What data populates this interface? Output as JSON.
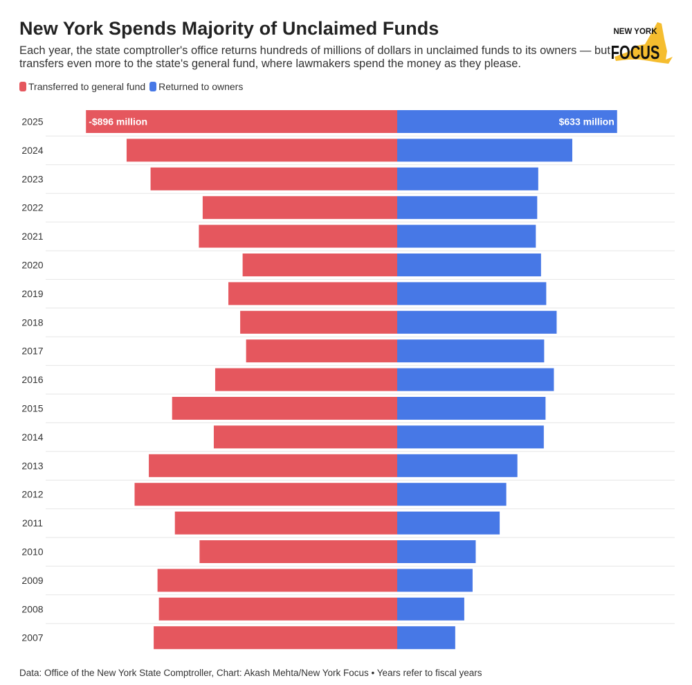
{
  "header": {
    "title": "New York Spends Majority of Unclaimed Funds",
    "subtitle": "Each year, the state comptroller's office returns hundreds of millions of dollars in unclaimed funds to its owners — but transfers even more to the state's general fund, where lawmakers spend the money as they please."
  },
  "logo": {
    "line1": "NEW YORK",
    "line2": "FOCUS",
    "color": "#f5bd2f"
  },
  "legend": {
    "transferred": "Transferred to general fund",
    "returned": "Returned to owners"
  },
  "footer": {
    "text": "Data: Office of the New York State Comptroller, Chart: Akash Mehta/New York Focus • Years refer to fiscal years"
  },
  "colors": {
    "transferred": "#e5575e",
    "returned": "#4778e6",
    "grid": "#e6e6e6"
  },
  "chart_data": {
    "type": "bar",
    "orientation": "horizontal-diverging",
    "title": "New York Spends Majority of Unclaimed Funds",
    "unit": "$ million",
    "categories": [
      "2025",
      "2024",
      "2023",
      "2022",
      "2021",
      "2020",
      "2019",
      "2018",
      "2017",
      "2016",
      "2015",
      "2014",
      "2013",
      "2012",
      "2011",
      "2010",
      "2009",
      "2008",
      "2007"
    ],
    "series": [
      {
        "name": "Transferred to general fund",
        "sign": -1,
        "values": [
          896,
          779,
          710,
          560,
          571,
          445,
          486,
          452,
          435,
          524,
          648,
          528,
          715,
          756,
          640,
          569,
          690,
          686,
          701
        ]
      },
      {
        "name": "Returned to owners",
        "sign": 1,
        "values": [
          633,
          504,
          406,
          403,
          399,
          414,
          429,
          459,
          423,
          451,
          427,
          422,
          346,
          314,
          295,
          226,
          217,
          193,
          167
        ]
      }
    ],
    "data_labels": [
      {
        "year": "2025",
        "series": "Transferred to general fund",
        "text": "-$896 million"
      },
      {
        "year": "2025",
        "series": "Returned to owners",
        "text": "$633 million"
      }
    ],
    "legend_position": "top-left"
  }
}
